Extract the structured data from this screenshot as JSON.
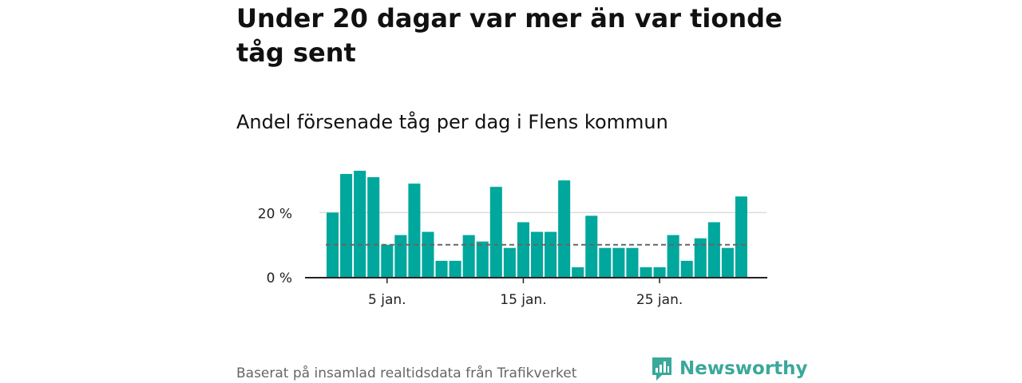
{
  "title": "Under 20 dagar var mer än var tionde tåg sent",
  "subtitle": "Andel försenade tåg per dag i Flens kommun",
  "source": "Baserat på insamlad realtidsdata från Trafikverket",
  "logo_text": "Newsworthy",
  "colors": {
    "bar": "#00a79d",
    "reference": "#666666",
    "grid": "#dddddd",
    "logo": "#3aa89a"
  },
  "chart_data": {
    "type": "bar",
    "x": [
      1,
      2,
      3,
      4,
      5,
      6,
      7,
      8,
      9,
      10,
      11,
      12,
      13,
      14,
      15,
      16,
      17,
      18,
      19,
      20,
      21,
      22,
      23,
      24,
      25,
      26,
      27,
      28,
      29,
      30,
      31
    ],
    "values": [
      20,
      32,
      33,
      31,
      10,
      13,
      29,
      14,
      5,
      5,
      13,
      11,
      28,
      9,
      17,
      14,
      14,
      30,
      3,
      19,
      9,
      9,
      9,
      3,
      3,
      13,
      5,
      12,
      17,
      9,
      25
    ],
    "reference_line": 10,
    "ylim": [
      0,
      33
    ],
    "yticks": [
      0,
      20
    ],
    "ytick_labels": [
      "0 %",
      "20 %"
    ],
    "xticks": [
      5,
      15,
      25
    ],
    "xtick_labels": [
      "5 jan.",
      "15 jan.",
      "25 jan."
    ],
    "grid": true
  }
}
